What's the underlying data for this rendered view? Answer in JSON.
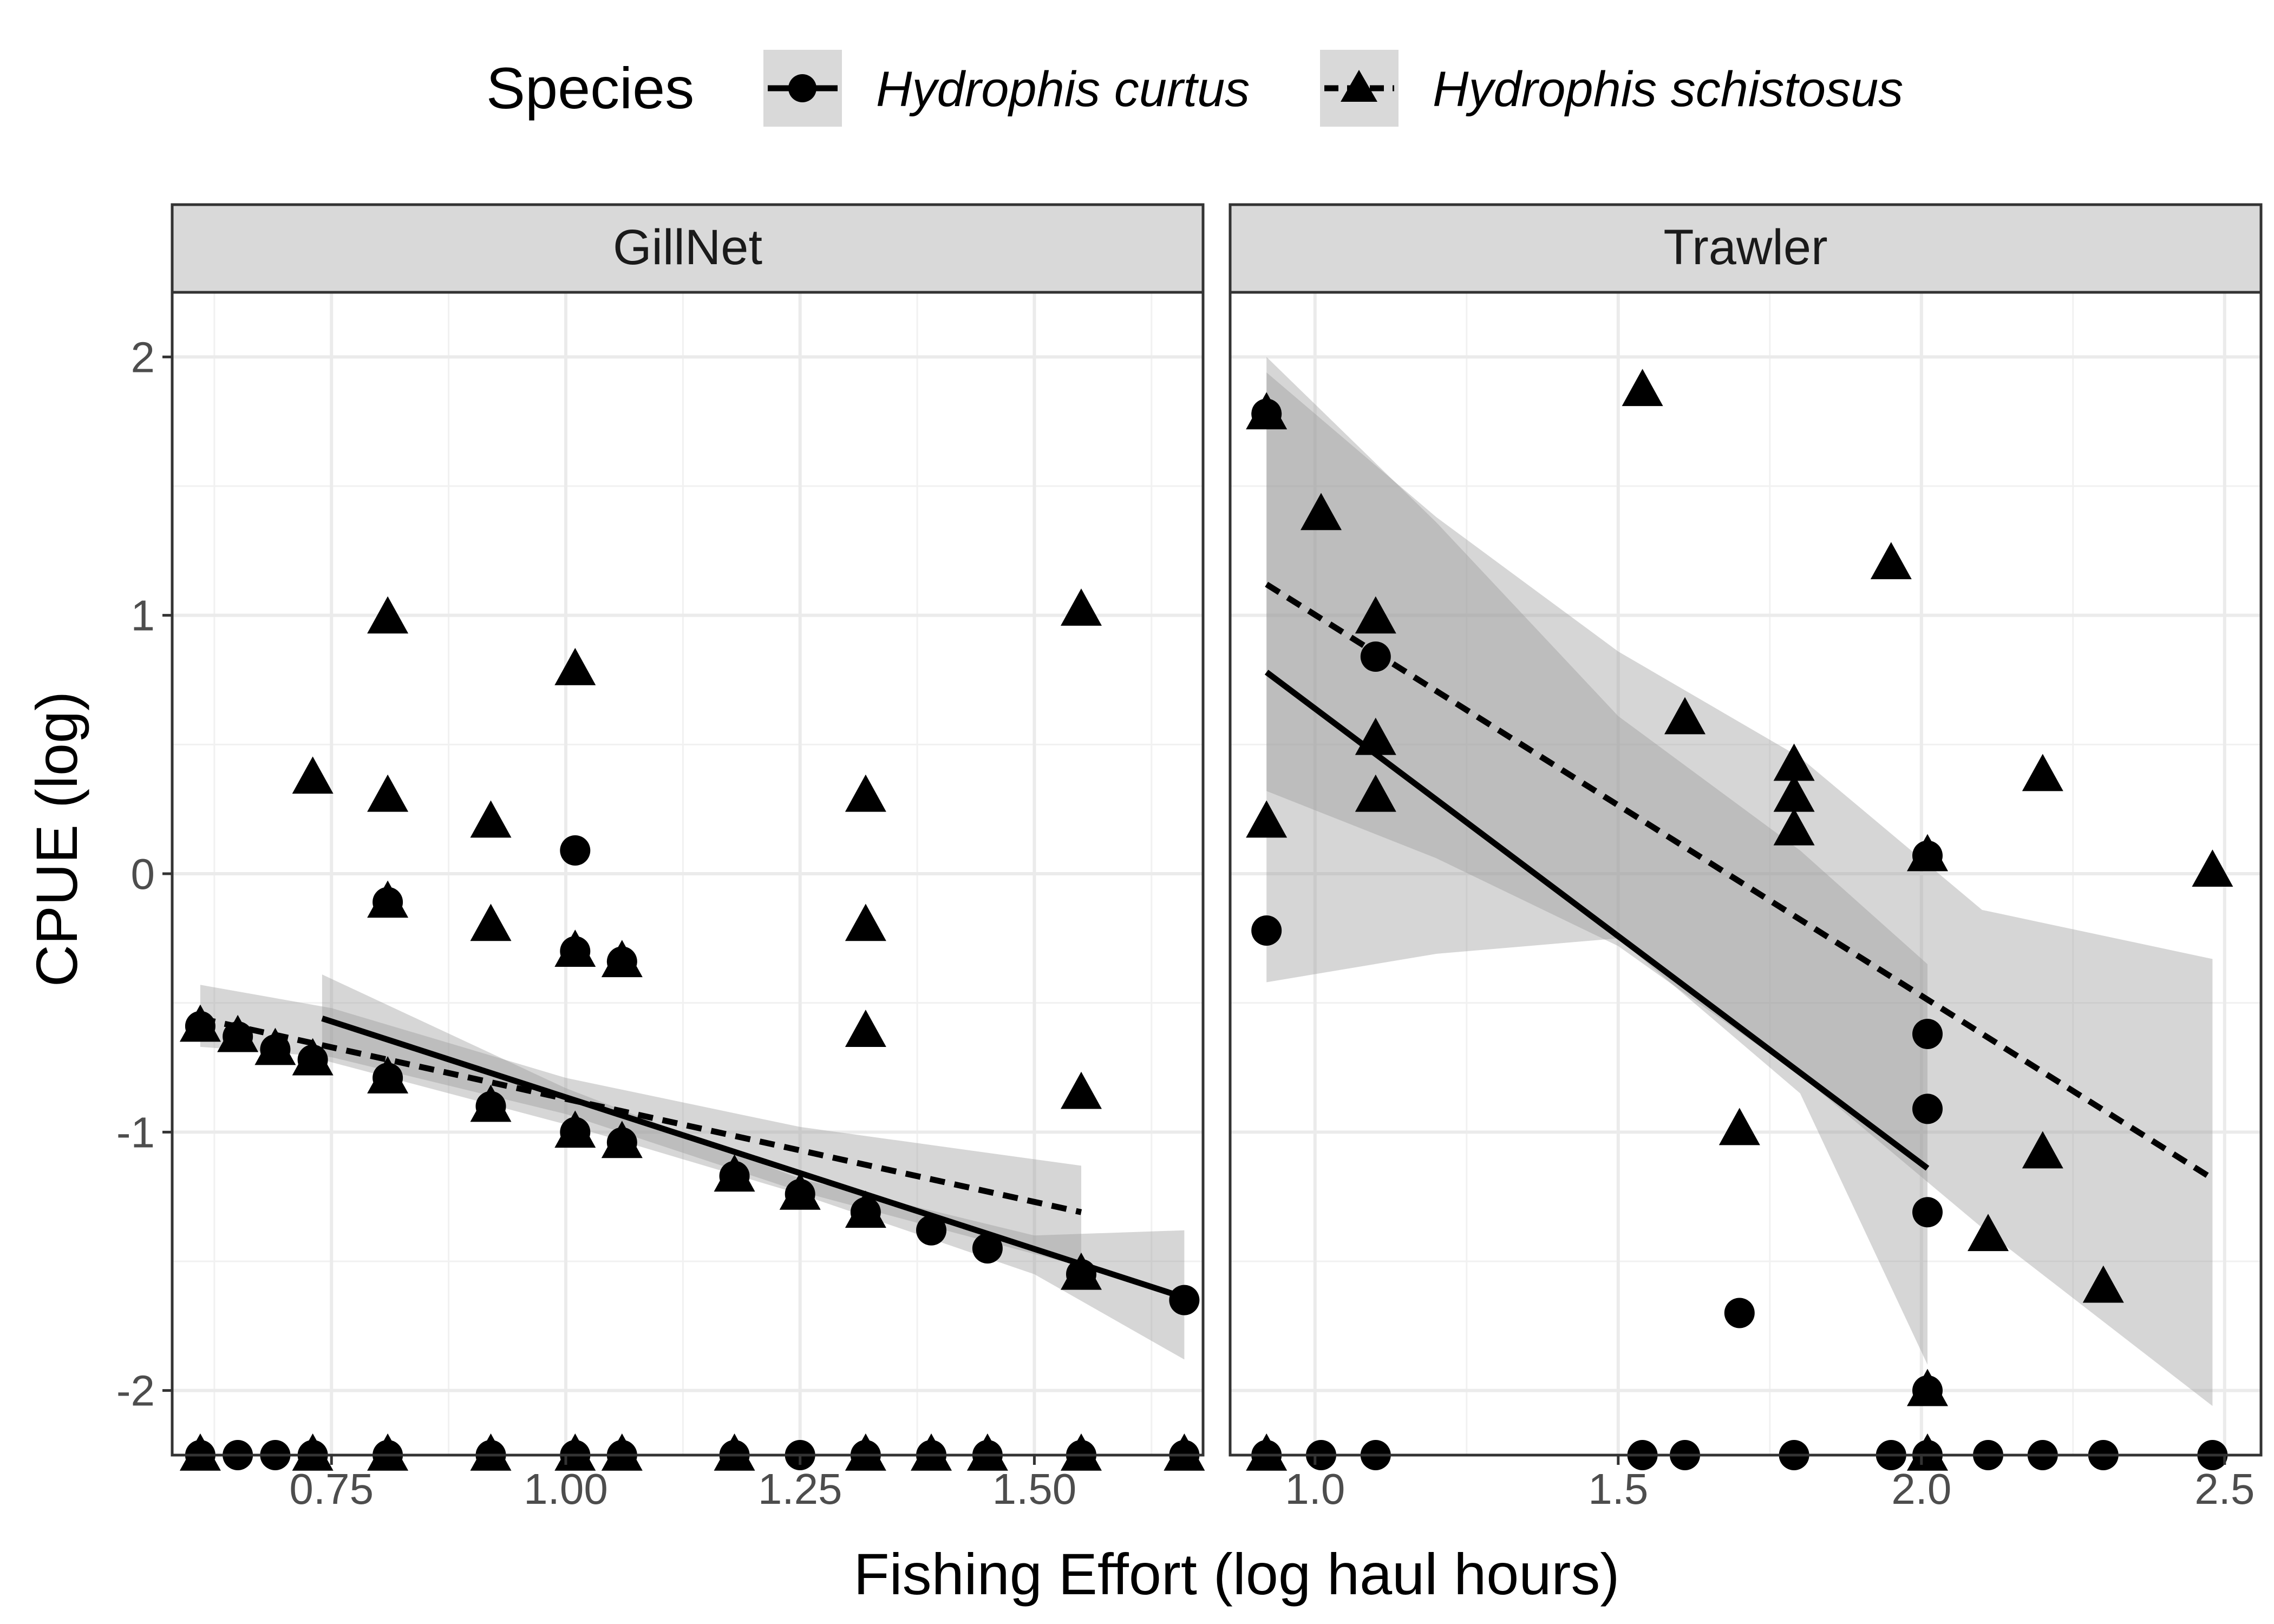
{
  "chart_data": {
    "type": "scatter",
    "xlabel": "Fishing Effort (log haul hours)",
    "ylabel": "CPUE (log)",
    "legend": {
      "title": "Species",
      "placement": "top",
      "entries": [
        {
          "name": "Hydrophis curtus",
          "marker": "circle",
          "line": "solid"
        },
        {
          "name": "Hydrophis schistosus",
          "marker": "triangle",
          "line": "dashed"
        }
      ]
    },
    "grid": true,
    "y_axis": {
      "ylim": [
        -2.25,
        2.25
      ],
      "ticks": [
        -2,
        -1,
        0,
        1,
        2
      ],
      "tick_labels": [
        "-2",
        "-1",
        "0",
        "1",
        "2"
      ]
    },
    "panels": [
      {
        "strip": "GillNet",
        "xlim": [
          0.58,
          1.68
        ],
        "ticks": [
          0.75,
          1.0,
          1.25,
          1.5
        ],
        "tick_labels": [
          "0.75",
          "1.00",
          "1.25",
          "1.50"
        ],
        "series": [
          {
            "name": "Hydrophis curtus",
            "points": [
              [
                0.61,
                -2.25
              ],
              [
                0.65,
                -2.25
              ],
              [
                0.69,
                -2.25
              ],
              [
                0.73,
                -2.25
              ],
              [
                0.81,
                -2.25
              ],
              [
                0.92,
                -2.25
              ],
              [
                1.01,
                -2.25
              ],
              [
                1.06,
                -2.25
              ],
              [
                1.18,
                -2.25
              ],
              [
                1.25,
                -2.25
              ],
              [
                1.32,
                -2.25
              ],
              [
                1.39,
                -2.25
              ],
              [
                1.45,
                -2.25
              ],
              [
                1.55,
                -2.25
              ],
              [
                1.66,
                -2.25
              ],
              [
                0.61,
                -0.59
              ],
              [
                0.65,
                -0.63
              ],
              [
                0.69,
                -0.68
              ],
              [
                0.73,
                -0.72
              ],
              [
                0.81,
                -0.79
              ],
              [
                0.81,
                -0.11
              ],
              [
                0.92,
                -0.9
              ],
              [
                1.01,
                0.09
              ],
              [
                1.01,
                -0.3
              ],
              [
                1.01,
                -1.0
              ],
              [
                1.06,
                -0.34
              ],
              [
                1.06,
                -1.04
              ],
              [
                1.18,
                -1.17
              ],
              [
                1.25,
                -1.24
              ],
              [
                1.32,
                -1.31
              ],
              [
                1.39,
                -1.38
              ],
              [
                1.45,
                -1.45
              ],
              [
                1.55,
                -1.55
              ],
              [
                1.66,
                -1.65
              ]
            ],
            "fit": {
              "x": [
                0.74,
                1.66
              ],
              "y": [
                -0.56,
                -1.64
              ]
            },
            "ci": {
              "x": [
                0.74,
                1.0,
                1.25,
                1.5,
                1.66
              ],
              "lower": [
                -0.72,
                -0.97,
                -1.24,
                -1.55,
                -1.88
              ],
              "upper": [
                -0.39,
                -0.83,
                -1.18,
                -1.4,
                -1.38
              ]
            }
          },
          {
            "name": "Hydrophis schistosus",
            "points": [
              [
                0.61,
                -2.25
              ],
              [
                0.73,
                -2.25
              ],
              [
                0.81,
                -2.25
              ],
              [
                0.92,
                -2.25
              ],
              [
                1.01,
                -2.25
              ],
              [
                1.06,
                -2.25
              ],
              [
                1.18,
                -2.25
              ],
              [
                1.32,
                -2.25
              ],
              [
                1.39,
                -2.25
              ],
              [
                1.45,
                -2.25
              ],
              [
                1.55,
                -2.25
              ],
              [
                1.66,
                -2.25
              ],
              [
                0.61,
                -0.59
              ],
              [
                0.65,
                -0.63
              ],
              [
                0.69,
                -0.68
              ],
              [
                0.73,
                0.37
              ],
              [
                0.73,
                -0.72
              ],
              [
                0.81,
                0.99
              ],
              [
                0.81,
                0.3
              ],
              [
                0.81,
                -0.11
              ],
              [
                0.81,
                -0.79
              ],
              [
                0.92,
                0.2
              ],
              [
                0.92,
                -0.2
              ],
              [
                0.92,
                -0.9
              ],
              [
                1.01,
                0.79
              ],
              [
                1.01,
                -0.3
              ],
              [
                1.01,
                -1.0
              ],
              [
                1.06,
                -0.34
              ],
              [
                1.06,
                -1.04
              ],
              [
                1.18,
                -1.17
              ],
              [
                1.25,
                -1.24
              ],
              [
                1.32,
                0.3
              ],
              [
                1.32,
                -0.2
              ],
              [
                1.32,
                -0.61
              ],
              [
                1.32,
                -1.31
              ],
              [
                1.55,
                1.02
              ],
              [
                1.55,
                -0.85
              ],
              [
                1.55,
                -1.55
              ]
            ],
            "fit": {
              "x": [
                0.61,
                1.55
              ],
              "y": [
                -0.56,
                -1.31
              ]
            },
            "ci": {
              "x": [
                0.61,
                0.75,
                1.0,
                1.25,
                1.55
              ],
              "lower": [
                -0.67,
                -0.71,
                -0.93,
                -1.23,
                -1.52
              ],
              "upper": [
                -0.43,
                -0.52,
                -0.79,
                -0.98,
                -1.13
              ]
            }
          }
        ]
      },
      {
        "strip": "Trawler",
        "xlim": [
          0.86,
          2.56
        ],
        "ticks": [
          1.0,
          1.5,
          2.0,
          2.5
        ],
        "tick_labels": [
          "1.0",
          "1.5",
          "2.0",
          "2.5"
        ],
        "series": [
          {
            "name": "Hydrophis curtus",
            "points": [
              [
                0.92,
                -2.25
              ],
              [
                1.01,
                -2.25
              ],
              [
                1.1,
                -2.25
              ],
              [
                1.54,
                -2.25
              ],
              [
                1.61,
                -2.25
              ],
              [
                1.79,
                -2.25
              ],
              [
                1.95,
                -2.25
              ],
              [
                2.01,
                -2.25
              ],
              [
                2.11,
                -2.25
              ],
              [
                2.2,
                -2.25
              ],
              [
                2.3,
                -2.25
              ],
              [
                2.48,
                -2.25
              ],
              [
                0.92,
                1.78
              ],
              [
                0.92,
                -0.22
              ],
              [
                1.1,
                0.84
              ],
              [
                1.7,
                -1.7
              ],
              [
                2.01,
                0.07
              ],
              [
                2.01,
                -0.62
              ],
              [
                2.01,
                -0.91
              ],
              [
                2.01,
                -1.31
              ],
              [
                2.01,
                -2.0
              ]
            ],
            "fit": {
              "x": [
                0.92,
                2.01
              ],
              "y": [
                0.78,
                -1.14
              ]
            },
            "ci": {
              "x": [
                0.92,
                1.2,
                1.5,
                1.8,
                2.01
              ],
              "lower": [
                -0.42,
                -0.31,
                -0.25,
                -0.85,
                -1.9
              ],
              "upper": [
                2.0,
                1.36,
                0.61,
                0.09,
                -0.35
              ]
            }
          },
          {
            "name": "Hydrophis schistosus",
            "points": [
              [
                0.92,
                -2.25
              ],
              [
                2.01,
                -2.25
              ],
              [
                0.92,
                1.78
              ],
              [
                0.92,
                0.2
              ],
              [
                1.01,
                1.39
              ],
              [
                1.1,
                0.99
              ],
              [
                1.1,
                0.52
              ],
              [
                1.1,
                0.3
              ],
              [
                1.54,
                1.87
              ],
              [
                1.61,
                0.6
              ],
              [
                1.7,
                -0.99
              ],
              [
                1.79,
                0.42
              ],
              [
                1.79,
                0.3
              ],
              [
                1.79,
                0.17
              ],
              [
                1.95,
                1.2
              ],
              [
                2.01,
                0.07
              ],
              [
                2.01,
                -2.0
              ],
              [
                2.11,
                -1.4
              ],
              [
                2.2,
                0.38
              ],
              [
                2.2,
                -1.08
              ],
              [
                2.3,
                -1.6
              ],
              [
                2.48,
                0.01
              ]
            ],
            "fit": {
              "x": [
                0.92,
                2.48
              ],
              "y": [
                1.12,
                -1.18
              ]
            },
            "ci": {
              "x": [
                0.92,
                1.2,
                1.5,
                1.8,
                2.1,
                2.48
              ],
              "lower": [
                0.32,
                0.06,
                -0.28,
                -0.78,
                -1.37,
                -2.06
              ],
              "upper": [
                1.94,
                1.38,
                0.86,
                0.45,
                -0.14,
                -0.33
              ]
            }
          }
        ]
      }
    ]
  }
}
